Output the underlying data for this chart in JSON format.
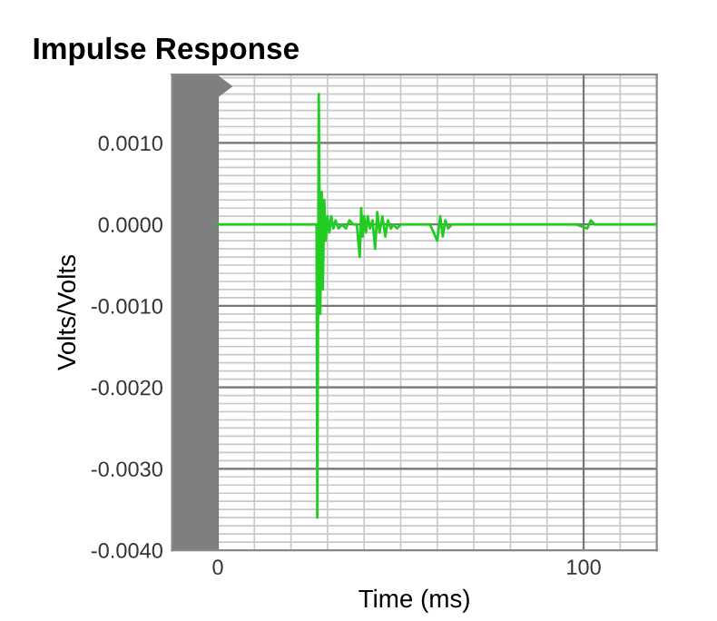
{
  "chart_data": {
    "type": "line",
    "title": "Impulse Response",
    "xlabel": "Time (ms)",
    "ylabel": "Volts/Volts",
    "x": [
      0,
      27.0,
      27.2,
      27.6,
      28.0,
      28.4,
      28.7,
      29.1,
      29.5,
      30.0,
      30.5,
      31.0,
      31.6,
      32.2,
      33.0,
      34.0,
      35.0,
      36.0,
      37.0,
      38.0,
      38.8,
      39.2,
      39.6,
      40.0,
      40.5,
      41.0,
      41.6,
      42.3,
      43.0,
      43.6,
      44.2,
      45.0,
      45.8,
      46.5,
      47.3,
      48.0,
      49.0,
      50.0,
      52.0,
      54.0,
      56.0,
      58.0,
      60.0,
      60.8,
      61.5,
      62.2,
      63.0,
      64.0,
      66.0,
      68.0,
      70.0,
      72.0,
      75.0,
      78.0,
      82.0,
      86.0,
      90.0,
      94.0,
      98.0,
      101.0,
      102.0,
      103.0,
      106.0,
      110.0,
      115.0,
      120.0
    ],
    "series": [
      {
        "color": "#22cc22",
        "values": [
          0,
          0,
          -0.0036,
          0.0016,
          -0.0011,
          0.0004,
          -0.0008,
          0.0003,
          -0.0002,
          0.0001,
          -0.0001,
          0.0001,
          -5e-05,
          5e-05,
          -5e-05,
          0,
          -5e-05,
          5e-05,
          0,
          0,
          -0.0004,
          0.0002,
          -0.00015,
          0.0001,
          -0.0001,
          0.0001,
          -5e-05,
          5e-05,
          -0.0003,
          0.00015,
          -0.0001,
          0.0001,
          -0.00015,
          5e-05,
          -5e-05,
          0,
          -5e-05,
          0,
          0,
          0,
          0,
          0,
          -0.0002,
          0.0001,
          -0.00015,
          5e-05,
          -5e-05,
          0,
          0,
          0,
          0,
          0,
          0,
          0,
          0,
          0,
          0,
          0,
          0,
          -5e-05,
          5e-05,
          0,
          0,
          0,
          0,
          0
        ]
      }
    ],
    "xlim": [
      -12.5,
      120
    ],
    "xticks": [
      0,
      100
    ],
    "ylim": [
      -0.004,
      0.00184
    ],
    "yticks": [
      {
        "value": -0.004,
        "label": "-0.0040"
      },
      {
        "value": -0.003,
        "label": "-0.0030"
      },
      {
        "value": -0.002,
        "label": "-0.0020"
      },
      {
        "value": -0.001,
        "label": "-0.0010"
      },
      {
        "value": 0,
        "label": "0.0000"
      },
      {
        "value": 0.001,
        "label": "0.0010"
      }
    ],
    "bands": [
      {
        "axis": "x",
        "from": -12.5,
        "to": 0,
        "color": "#7f7f7f"
      }
    ],
    "grid": true,
    "marker": "none",
    "line_style": "solid"
  }
}
